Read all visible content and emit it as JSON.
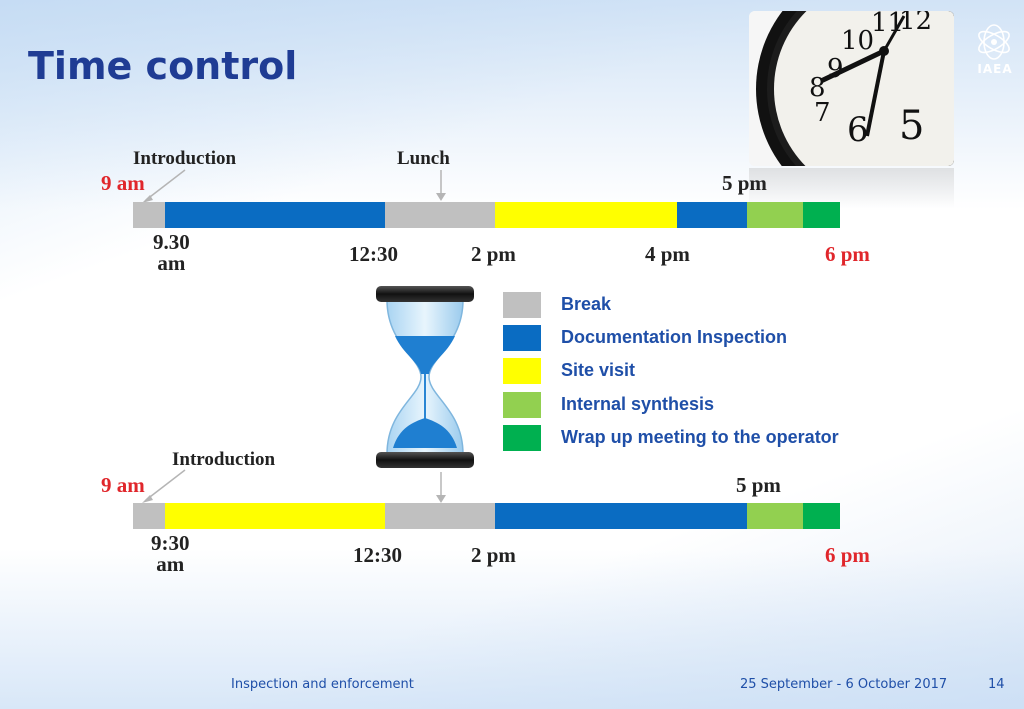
{
  "slide": {
    "title": "Time control",
    "logo_text": "IAEA"
  },
  "timeline1": {
    "label_intro": "Introduction",
    "label_lunch": "Lunch",
    "start": "9 am",
    "t_930": "9.30",
    "t_930_am": "am",
    "t_1230": "12:30",
    "t_2pm": "2 pm",
    "t_4pm": "4 pm",
    "t_5pm": "5 pm",
    "end": "6 pm"
  },
  "timeline2": {
    "label_intro": "Introduction",
    "start": "9 am",
    "t_930": "9:30",
    "t_930_am": "am",
    "t_1230": "12:30",
    "t_2pm": "2 pm",
    "t_5pm": "5 pm",
    "end": "6 pm"
  },
  "legend": [
    {
      "label": "Break",
      "color": "#c0c0c0"
    },
    {
      "label": "Documentation Inspection",
      "color": "#0a6cc2"
    },
    {
      "label": "Site visit",
      "color": "#ffff00"
    },
    {
      "label": "Internal synthesis",
      "color": "#92d050"
    },
    {
      "label": "Wrap up meeting to the operator",
      "color": "#00b050"
    }
  ],
  "footer": {
    "topic": "Inspection and enforcement",
    "dates": "25 September - 6 October 2017",
    "page": "14"
  }
}
